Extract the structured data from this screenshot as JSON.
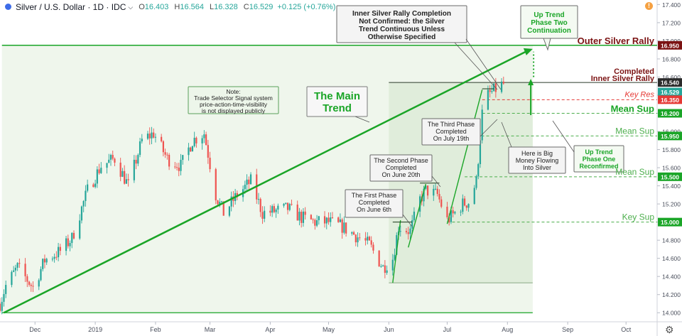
{
  "header": {
    "symbol": "Silver / U.S. Dollar · 1D · IDC",
    "open_label": "O",
    "open": "16.403",
    "high_label": "H",
    "high": "16.564",
    "low_label": "L",
    "low": "16.328",
    "close_label": "C",
    "close": "16.529",
    "change": "+0.125 (+0.76%)",
    "alert_badge": "!"
  },
  "colors": {
    "up": "#26a69a",
    "down": "#ef5350",
    "green": "#1aa527",
    "dark_red": "#7b1212",
    "red": "#e53935",
    "mid_green": "#4cae4c"
  },
  "chart_data": {
    "type": "candlestick",
    "y_axis": {
      "min": 13.9,
      "max": 17.45,
      "ticks": [
        "14.000",
        "14.200",
        "14.400",
        "14.600",
        "14.800",
        "15.000",
        "15.200",
        "15.400",
        "15.600",
        "15.800",
        "16.000",
        "16.200",
        "16.400",
        "16.600",
        "16.800",
        "17.000",
        "17.200",
        "17.400"
      ],
      "tick_values": [
        14.0,
        14.2,
        14.4,
        14.6,
        14.8,
        15.0,
        15.2,
        15.4,
        15.6,
        15.8,
        16.0,
        16.2,
        16.4,
        16.6,
        16.8,
        17.0,
        17.2,
        17.4
      ]
    },
    "x_axis": {
      "labels": [
        "Dec",
        "2019",
        "Feb",
        "Mar",
        "Apr",
        "May",
        "Jun",
        "Jul",
        "Aug",
        "Sep",
        "Oct"
      ],
      "label_dates": [
        "2018-12-01",
        "2019-01-01",
        "2019-02-01",
        "2019-03-01",
        "2019-04-01",
        "2019-05-01",
        "2019-06-01",
        "2019-07-01",
        "2019-08-01",
        "2019-09-01",
        "2019-10-01"
      ],
      "start": "2018-11-13",
      "end": "2019-10-17"
    },
    "price_path": [
      [
        "2018-11-13",
        14.1
      ],
      [
        "2018-11-16",
        14.3
      ],
      [
        "2018-11-22",
        14.5
      ],
      [
        "2018-11-30",
        14.28
      ],
      [
        "2018-12-06",
        14.58
      ],
      [
        "2018-12-14",
        14.68
      ],
      [
        "2018-12-20",
        14.82
      ],
      [
        "2018-12-28",
        15.35
      ],
      [
        "2019-01-04",
        15.62
      ],
      [
        "2019-01-11",
        15.7
      ],
      [
        "2019-01-18",
        15.4
      ],
      [
        "2019-01-25",
        15.9
      ],
      [
        "2019-01-31",
        15.98
      ],
      [
        "2019-02-07",
        15.7
      ],
      [
        "2019-02-14",
        15.62
      ],
      [
        "2019-02-20",
        15.9
      ],
      [
        "2019-02-26",
        15.98
      ],
      [
        "2019-03-04",
        15.3
      ],
      [
        "2019-03-08",
        15.1
      ],
      [
        "2019-03-15",
        15.3
      ],
      [
        "2019-03-22",
        15.45
      ],
      [
        "2019-03-28",
        15.1
      ],
      [
        "2019-04-03",
        15.12
      ],
      [
        "2019-04-10",
        15.15
      ],
      [
        "2019-04-17",
        15.05
      ],
      [
        "2019-04-24",
        15.0
      ],
      [
        "2019-05-01",
        15.0
      ],
      [
        "2019-05-08",
        14.95
      ],
      [
        "2019-05-15",
        14.85
      ],
      [
        "2019-05-22",
        14.75
      ],
      [
        "2019-05-29",
        14.5
      ],
      [
        "2019-06-03",
        14.6
      ],
      [
        "2019-06-06",
        14.95
      ],
      [
        "2019-06-12",
        14.9
      ],
      [
        "2019-06-17",
        15.25
      ],
      [
        "2019-06-20",
        15.35
      ],
      [
        "2019-06-26",
        15.3
      ],
      [
        "2019-07-01",
        15.02
      ],
      [
        "2019-07-05",
        15.1
      ],
      [
        "2019-07-09",
        15.2
      ],
      [
        "2019-07-12",
        15.22
      ],
      [
        "2019-07-16",
        15.45
      ],
      [
        "2019-07-19",
        16.2
      ],
      [
        "2019-07-22",
        16.4
      ],
      [
        "2019-07-25",
        16.45
      ],
      [
        "2019-07-30",
        16.53
      ]
    ],
    "last_close": 16.529,
    "lines": {
      "outer_rally": 16.95,
      "inner_rally": 16.54,
      "key_res": 16.35,
      "mean_sup_1": 16.2,
      "mean_sup_2": 15.95,
      "mean_sup_3": 15.5,
      "key_sup": 15.0,
      "bottom_line": 14.0,
      "range_floor": 14.33
    },
    "main_trend": {
      "from_date": "2018-11-15",
      "from_price": 14.0,
      "to_date": "2019-08-14",
      "to_price": 16.91
    },
    "level_labels": {
      "outer": "Outer Silver Rally",
      "inner_1": "Completed",
      "inner_2": "Inner Silver Rally",
      "key_res": "Key Res",
      "mean_sup_1": "Mean Sup",
      "mean_sup_2": "Mean Sup",
      "mean_sup_3": "Mean Sup",
      "key_sup": "Key Sup"
    },
    "price_tags": {
      "outer": "16.950",
      "inner": "16.540",
      "last": "16.529",
      "key_res": "16.350",
      "mean_sup_1": "16.200",
      "mean_sup_2": "15.950",
      "mean_sup_3": "15.500",
      "key_sup": "15.000"
    },
    "callouts": {
      "main_trend": [
        "The Main",
        "Trend"
      ],
      "note": [
        "Note:",
        "Trade Selector Signal system",
        "price-action-time-visibility",
        "is not displayed publicly"
      ],
      "inner_rally": [
        "Inner Silver Rally Completion",
        "Not Confirmed: the Silver",
        "Trend Continuous Unless",
        "Otherwise Specified"
      ],
      "up_trend_two": [
        "Up Trend",
        "Phase Two",
        "Continuation"
      ],
      "up_trend_one": [
        "Up Trend",
        "Phase One",
        "Reconfirmed"
      ],
      "first_phase": [
        "The First Phase",
        "Completed",
        "On June 6th"
      ],
      "second_phase": [
        "The Second Phase",
        "Completed",
        "On June 20th"
      ],
      "third_phase": [
        "The Third Phase",
        "Completed",
        "On July 19th"
      ],
      "big_money": [
        "Here is Big",
        "Money Flowing",
        "Into Silver"
      ]
    }
  }
}
